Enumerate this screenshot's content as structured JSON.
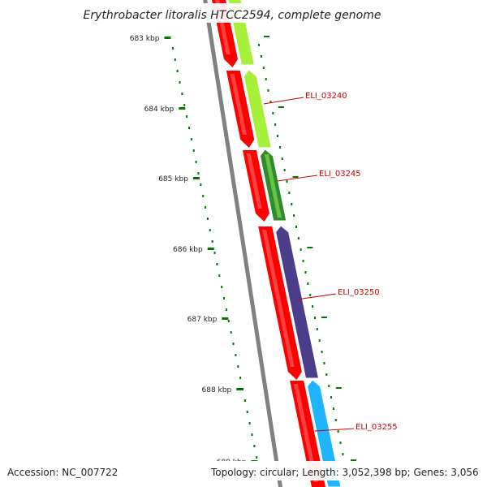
{
  "title": "Erythrobacter litoralis HTCC2594, complete genome",
  "footer": {
    "accession": "Accession: NC_007722",
    "summary": "Topology: circular; Length: 3,052,398 bp; Genes: 3,056"
  },
  "ticks": [
    "683 kbp",
    "684 kbp",
    "685 kbp",
    "686 kbp",
    "687 kbp",
    "688 kbp",
    "689 kbp"
  ],
  "genes": [
    {
      "label": "ELI_03240",
      "color": "#a6f03c"
    },
    {
      "label": "ELI_03245",
      "color": "#2e8b2e"
    },
    {
      "label": "ELI_03250",
      "color": "#4b3c8c"
    },
    {
      "label": "ELI_03255",
      "color": "#1eb4ff"
    }
  ],
  "colors": {
    "backbone": "#808080",
    "cds_reverse": "#ff0000",
    "tick": "#007700",
    "label": "#cc0000"
  }
}
